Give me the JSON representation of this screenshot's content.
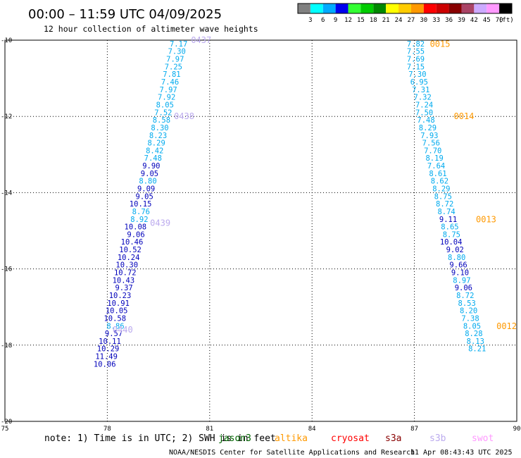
{
  "title": "00:00 – 11:59 UTC 04/09/2025",
  "subtitle": "12 hour collection of altimeter wave heights",
  "note": "note: 1) Time is in UTC; 2) SWH is in feet",
  "footer": {
    "center": "NOAA/NESDIS Center for Satellite Applications and Research",
    "timestamp": "11 Apr 08:43:43 UTC 2025"
  },
  "colorbar": {
    "colors": [
      "#808080",
      "#00ffff",
      "#00aaff",
      "#0000ee",
      "#33ff33",
      "#00cc00",
      "#008800",
      "#ffff00",
      "#ffcc00",
      "#ff9900",
      "#ff0000",
      "#cc0000",
      "#880000",
      "#aa4466",
      "#ccaaff",
      "#ff99ff",
      "#000000"
    ],
    "labels": [
      "3",
      "6",
      "9",
      "12",
      "15",
      "18",
      "21",
      "24",
      "27",
      "30",
      "33",
      "36",
      "39",
      "42",
      "45",
      "70"
    ],
    "unit": "(ft)"
  },
  "satellites": [
    {
      "name": "jason3",
      "color": "#006600"
    },
    {
      "name": "altika",
      "color": "#ff9900"
    },
    {
      "name": "cryosat",
      "color": "#ff0000"
    },
    {
      "name": "s3a",
      "color": "#880000"
    },
    {
      "name": "s3b",
      "color": "#bbaaee"
    },
    {
      "name": "swot",
      "color": "#ff99ff"
    }
  ],
  "chart_data": {
    "type": "scatter",
    "xlim": [
      75,
      90
    ],
    "ylim": [
      -20,
      -10
    ],
    "xticks": [
      "75",
      "78",
      "81",
      "84",
      "87",
      "90"
    ],
    "yticks": [
      "-10",
      "-12",
      "-14",
      "-16",
      "-18",
      "-20"
    ],
    "grid": true,
    "tracks": [
      {
        "satellite": "s3b",
        "points": [
          [
            80.35,
            -10.1,
            "7.17"
          ],
          [
            80.3,
            -10.3,
            "7.30"
          ],
          [
            80.25,
            -10.5,
            "7.97"
          ],
          [
            80.2,
            -10.7,
            "7.25"
          ],
          [
            80.15,
            -10.9,
            "7.81"
          ],
          [
            80.1,
            -11.1,
            "7.46"
          ],
          [
            80.05,
            -11.3,
            "7.97"
          ],
          [
            80.0,
            -11.5,
            "7.92"
          ],
          [
            79.95,
            -11.7,
            "8.05"
          ],
          [
            79.9,
            -11.9,
            "7.52"
          ],
          [
            79.85,
            -12.1,
            "8.58"
          ],
          [
            79.8,
            -12.3,
            "8.30"
          ],
          [
            79.75,
            -12.5,
            "8.23"
          ],
          [
            79.7,
            -12.7,
            "8.29"
          ],
          [
            79.65,
            -12.9,
            "8.42"
          ],
          [
            79.6,
            -13.1,
            "7.48"
          ],
          [
            79.55,
            -13.3,
            "9.90"
          ],
          [
            79.5,
            -13.5,
            "9.05"
          ],
          [
            79.45,
            -13.7,
            "8.80"
          ],
          [
            79.4,
            -13.9,
            "9.09"
          ],
          [
            79.35,
            -14.1,
            "9.05"
          ],
          [
            79.3,
            -14.3,
            "10.15"
          ],
          [
            79.25,
            -14.5,
            "8.76"
          ],
          [
            79.2,
            -14.7,
            "8.92"
          ],
          [
            79.15,
            -14.9,
            "10.08"
          ],
          [
            79.1,
            -15.1,
            "9.06"
          ],
          [
            79.05,
            -15.3,
            "10.46"
          ],
          [
            79.0,
            -15.5,
            "10.52"
          ],
          [
            78.95,
            -15.7,
            "10.24"
          ],
          [
            78.9,
            -15.9,
            "10.30"
          ],
          [
            78.85,
            -16.1,
            "10.72"
          ],
          [
            78.8,
            -16.3,
            "10.43"
          ],
          [
            78.75,
            -16.5,
            "9.37"
          ],
          [
            78.7,
            -16.7,
            "10.23"
          ],
          [
            78.65,
            -16.9,
            "10.91"
          ],
          [
            78.6,
            -17.1,
            "10.05"
          ],
          [
            78.55,
            -17.3,
            "10.58"
          ],
          [
            78.5,
            -17.5,
            "8.86"
          ],
          [
            78.45,
            -17.7,
            "9.57"
          ],
          [
            78.4,
            -17.9,
            "10.11"
          ],
          [
            78.35,
            -18.1,
            "10.29"
          ],
          [
            78.3,
            -18.3,
            "11.49"
          ],
          [
            78.25,
            -18.5,
            "10.06"
          ]
        ],
        "time_labels": [
          [
            "0437",
            81.05,
            -10.0
          ],
          [
            "0438",
            80.55,
            -12.0
          ],
          [
            "0439",
            79.85,
            -14.8
          ],
          [
            "0440",
            78.75,
            -17.6
          ]
        ]
      },
      {
        "satellite": "altika",
        "points": [
          [
            87.3,
            -10.1,
            "7.82"
          ],
          [
            87.3,
            -10.3,
            "7.55"
          ],
          [
            87.3,
            -10.5,
            "7.69"
          ],
          [
            87.3,
            -10.7,
            "7.15"
          ],
          [
            87.35,
            -10.9,
            "7.30"
          ],
          [
            87.4,
            -11.1,
            "6.95"
          ],
          [
            87.45,
            -11.3,
            "7.31"
          ],
          [
            87.5,
            -11.5,
            "7.32"
          ],
          [
            87.55,
            -11.7,
            "7.24"
          ],
          [
            87.55,
            -11.9,
            "7.50"
          ],
          [
            87.6,
            -12.1,
            "7.48"
          ],
          [
            87.65,
            -12.3,
            "8.29"
          ],
          [
            87.7,
            -12.5,
            "7.93"
          ],
          [
            87.75,
            -12.7,
            "7.56"
          ],
          [
            87.8,
            -12.9,
            "7.70"
          ],
          [
            87.85,
            -13.1,
            "8.19"
          ],
          [
            87.9,
            -13.3,
            "7.64"
          ],
          [
            87.95,
            -13.5,
            "8.61"
          ],
          [
            88.0,
            -13.7,
            "8.62"
          ],
          [
            88.05,
            -13.9,
            "8.29"
          ],
          [
            88.1,
            -14.1,
            "8.75"
          ],
          [
            88.15,
            -14.3,
            "8.72"
          ],
          [
            88.2,
            -14.5,
            "8.74"
          ],
          [
            88.25,
            -14.7,
            "9.11"
          ],
          [
            88.3,
            -14.9,
            "8.65"
          ],
          [
            88.35,
            -15.1,
            "8.75"
          ],
          [
            88.4,
            -15.3,
            "10.04"
          ],
          [
            88.45,
            -15.5,
            "9.02"
          ],
          [
            88.5,
            -15.7,
            "8.80"
          ],
          [
            88.55,
            -15.9,
            "9.66"
          ],
          [
            88.6,
            -16.1,
            "9.10"
          ],
          [
            88.65,
            -16.3,
            "8.97"
          ],
          [
            88.7,
            -16.5,
            "9.06"
          ],
          [
            88.75,
            -16.7,
            "8.72"
          ],
          [
            88.8,
            -16.9,
            "8.53"
          ],
          [
            88.85,
            -17.1,
            "8.20"
          ],
          [
            88.9,
            -17.3,
            "7.38"
          ],
          [
            88.95,
            -17.5,
            "8.05"
          ],
          [
            89.0,
            -17.7,
            "8.28"
          ],
          [
            89.05,
            -17.9,
            "8.13"
          ],
          [
            89.1,
            -18.1,
            "8.21"
          ]
        ],
        "time_labels": [
          [
            "0015",
            88.05,
            -10.1
          ],
          [
            "0014",
            88.75,
            -12.0
          ],
          [
            "0013",
            89.4,
            -14.7
          ],
          [
            "0012",
            90.0,
            -17.5
          ]
        ]
      }
    ]
  }
}
